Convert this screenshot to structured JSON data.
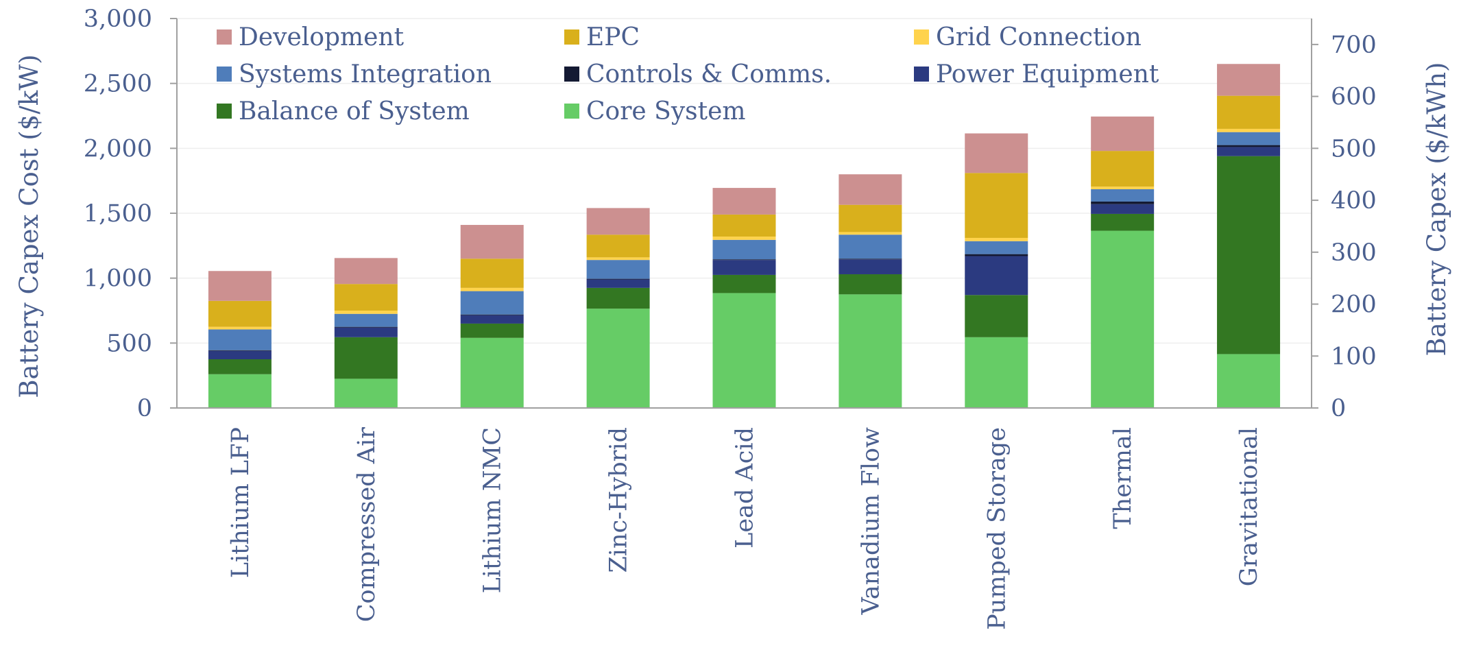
{
  "chart_data": {
    "type": "bar",
    "stacked": true,
    "categories": [
      "Lithium LFP",
      "Compressed Air",
      "Lithium NMC",
      "Zinc-Hybrid",
      "Lead Acid",
      "Vanadium Flow",
      "Pumped Storage",
      "Thermal",
      "Gravitational"
    ],
    "series": [
      {
        "name": "Core System",
        "color": "#66cc66",
        "values": [
          260,
          225,
          540,
          765,
          885,
          875,
          545,
          1365,
          415
        ]
      },
      {
        "name": "Balance of System",
        "color": "#337722",
        "values": [
          115,
          320,
          110,
          160,
          140,
          155,
          325,
          130,
          1525
        ]
      },
      {
        "name": "Power Equipment",
        "color": "#2b3a80",
        "values": [
          65,
          75,
          65,
          65,
          115,
          115,
          300,
          75,
          70
        ]
      },
      {
        "name": "Controls & Comms.",
        "color": "#141a33",
        "values": [
          5,
          5,
          5,
          5,
          5,
          5,
          15,
          20,
          15
        ]
      },
      {
        "name": "Systems Integration",
        "color": "#4f7dba",
        "values": [
          160,
          100,
          180,
          145,
          150,
          185,
          100,
          95,
          100
        ]
      },
      {
        "name": "Grid Connection",
        "color": "#ffd34d",
        "values": [
          20,
          25,
          25,
          20,
          25,
          20,
          25,
          20,
          25
        ]
      },
      {
        "name": "EPC",
        "color": "#d9b01c",
        "values": [
          200,
          205,
          225,
          175,
          170,
          210,
          500,
          275,
          255
        ]
      },
      {
        "name": "Development",
        "color": "#cc9090",
        "values": [
          230,
          200,
          260,
          205,
          205,
          235,
          305,
          265,
          245
        ]
      }
    ],
    "legend_order": [
      "Development",
      "EPC",
      "Grid Connection",
      "Systems Integration",
      "Controls & Comms.",
      "Power Equipment",
      "Balance of System",
      "Core System"
    ],
    "legend_placement": "top-left",
    "title": "",
    "ylabel": "Battery Capex Cost ($/kW)",
    "ylim": [
      0,
      3000
    ],
    "yticks": [
      "0",
      "500",
      "1,000",
      "1,500",
      "2,000",
      "2,500",
      "3,000"
    ],
    "ytick_values": [
      0,
      500,
      1000,
      1500,
      2000,
      2500,
      3000
    ],
    "y2label": "Battery Capex ($/kWh)",
    "y2lim": [
      0,
      750
    ],
    "y2ticks": [
      "0",
      "100",
      "200",
      "300",
      "400",
      "500",
      "600",
      "700"
    ],
    "y2tick_values": [
      0,
      100,
      200,
      300,
      400,
      500,
      600,
      700
    ],
    "grid": true,
    "gridline_color": "#eeeeee",
    "axis_color": "#a0a0a0"
  }
}
